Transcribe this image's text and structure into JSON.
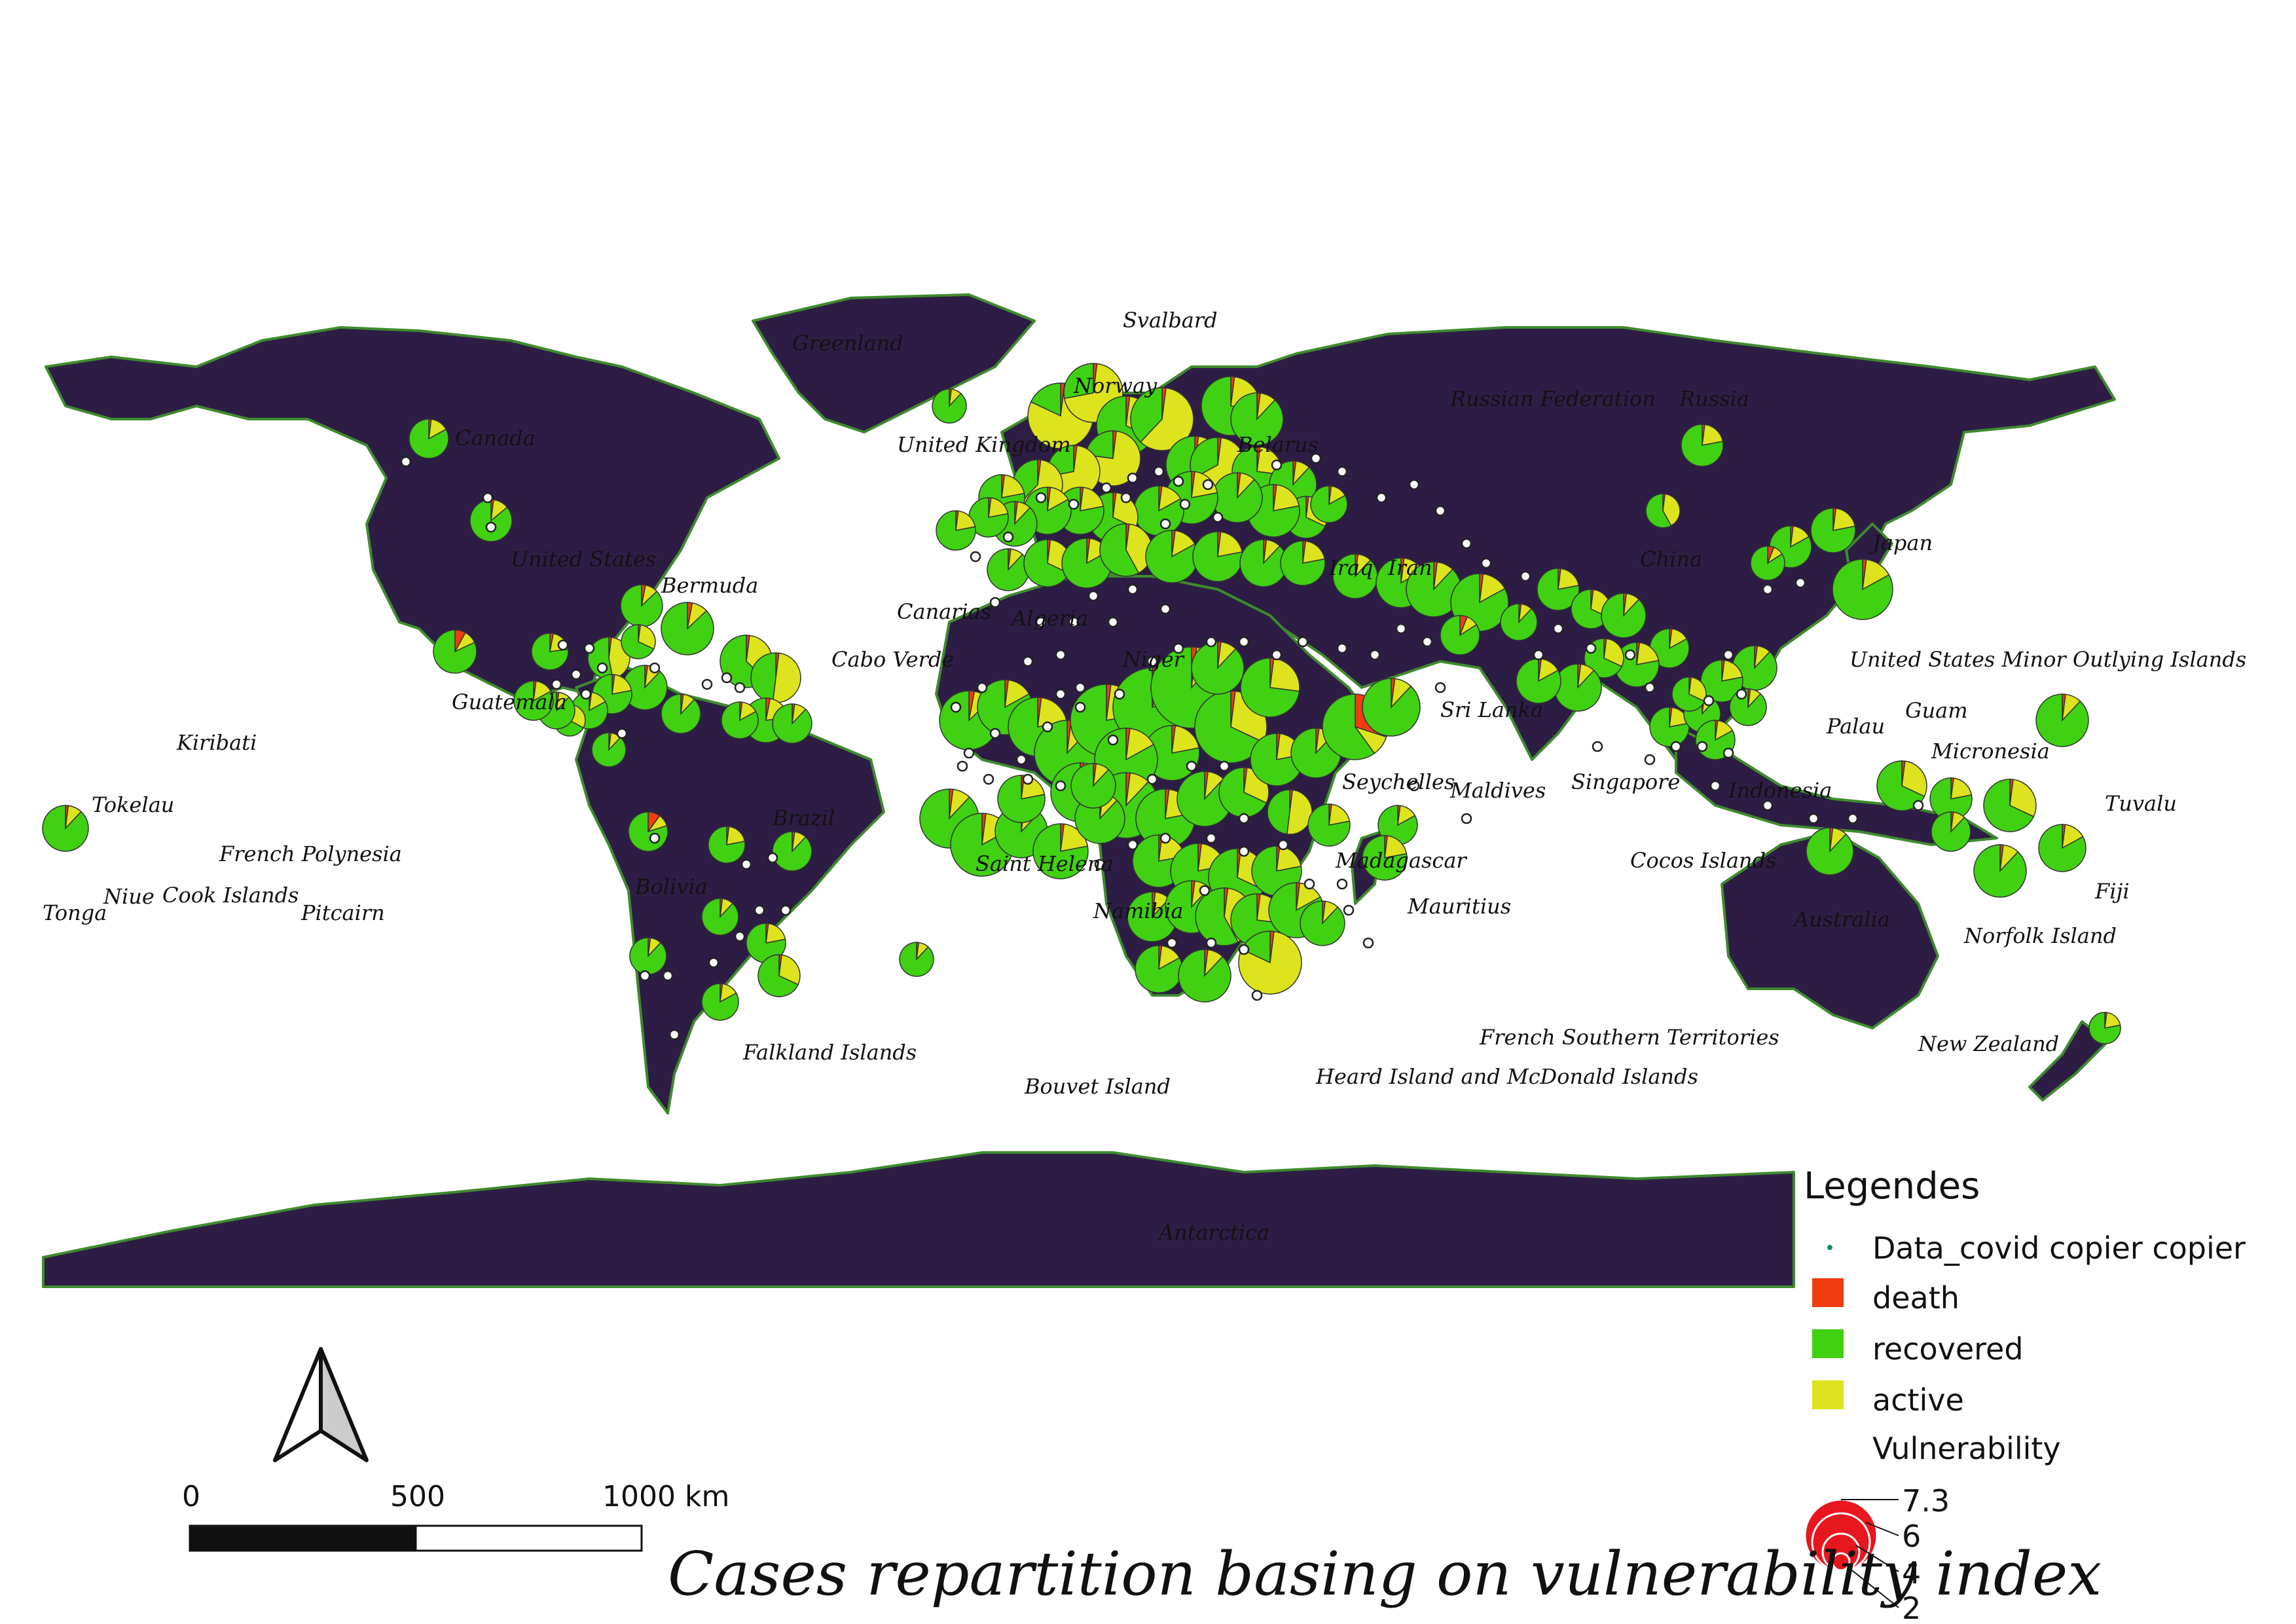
{
  "title": "Cases repartition basing on vulnerability index",
  "colors": {
    "land": "#2d1d45",
    "coast": "#3f8a2e",
    "death": "#f03c0f",
    "recovered": "#3fd112",
    "active": "#dde31c",
    "point": "#ffffff",
    "vuln_symbol": "#e8161e"
  },
  "labels": [
    "Canada",
    "United States",
    "Bermuda",
    "Greenland",
    "Svalbard",
    "Norway",
    "United Kingdom",
    "Belarus",
    "Russian Federation",
    "Russia",
    "China",
    "Japan",
    "Iraq",
    "Iran",
    "Canarias",
    "Algeria",
    "Cabo Verde",
    "Niger",
    "Guatemala",
    "Sri Lanka",
    "Maldives",
    "Seychelles",
    "Madagascar",
    "Mauritius",
    "United States Minor Outlying Islands",
    "Guam",
    "Palau",
    "Micronesia",
    "Singapore",
    "Indonesia",
    "Tuvalu",
    "Cocos Islands",
    "Fiji",
    "Norfolk Island",
    "Australia",
    "New Zealand",
    "Kiribati",
    "Tokelau",
    "French Polynesia",
    "Tonga",
    "Niue",
    "Cook Islands",
    "Pitcairn",
    "Brazil",
    "Bolivia",
    "Saint Helena",
    "Namibia",
    "Falkland Islands",
    "Bouvet Island",
    "French Southern Territories",
    "Heard Island and McDonald Islands",
    "Antarctica"
  ],
  "legend": {
    "title": "Legendes",
    "items": [
      {
        "label": "Data_covid copier copier",
        "kind": "point"
      },
      {
        "label": "death",
        "kind": "death"
      },
      {
        "label": "recovered",
        "kind": "recovered"
      },
      {
        "label": "active",
        "kind": "active"
      }
    ],
    "size_title": "Vulnerability",
    "size_values": [
      "7.3",
      "6",
      "4",
      "2"
    ]
  },
  "scale_bar": {
    "ticks": [
      "0",
      "500",
      "1000 km"
    ]
  },
  "north_arrow": "north-arrow-icon"
}
